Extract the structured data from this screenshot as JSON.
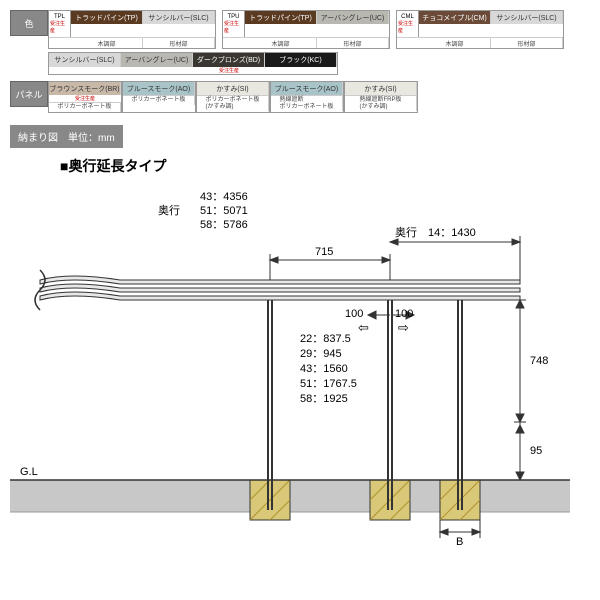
{
  "labels": {
    "color": "色",
    "panel": "パネル",
    "section": "納まり図　単位：mm",
    "title": "■奥行延長タイプ"
  },
  "color_groups": [
    {
      "code": "TPL",
      "note": "受注生産",
      "sw": [
        {
          "t": "トラッドパイン(TP)",
          "c": "#5b3a22",
          "fg": "#fff"
        },
        {
          "t": "サンシルバー(SLC)",
          "c": "#d8d8d8",
          "fg": "#333"
        }
      ],
      "sub": [
        "木調部",
        "形材部"
      ]
    },
    {
      "code": "TPU",
      "note": "受注生産",
      "sw": [
        {
          "t": "トラッドパイン(TP)",
          "c": "#5b3a22",
          "fg": "#fff"
        },
        {
          "t": "アーバングレー(UC)",
          "c": "#b8b8b0",
          "fg": "#333"
        }
      ],
      "sub": [
        "木調部",
        "形材部"
      ]
    },
    {
      "code": "CML",
      "note": "受注生産",
      "sw": [
        {
          "t": "チョコメイプル(CM)",
          "c": "#6b4a38",
          "fg": "#fff"
        },
        {
          "t": "サンシルバー(SLC)",
          "c": "#d8d8d8",
          "fg": "#333"
        }
      ],
      "sub": [
        "木調部",
        "形材部"
      ]
    }
  ],
  "color_row2": [
    {
      "t": "サンシルバー(SLC)",
      "c": "#d8d8d8",
      "fg": "#333"
    },
    {
      "t": "アーバングレー(UC)",
      "c": "#b8b8b0",
      "fg": "#333"
    },
    {
      "t": "ダークブロンズ(BD)",
      "c": "#3a3630",
      "fg": "#fff",
      "note": "受注生産"
    },
    {
      "t": "ブラック(KC)",
      "c": "#1a1a1a",
      "fg": "#fff"
    }
  ],
  "panel_row": [
    {
      "t": "ブラウンスモーク(BR)",
      "c": "#c8b8a8",
      "s": "ポリカーボネート板",
      "note": "受注生産"
    },
    {
      "t": "ブルースモーク(AO)",
      "c": "#a8c4c8",
      "s": "ポリカーボネート板"
    },
    {
      "t": "かすみ(SI)",
      "c": "#e8e8e0",
      "s": "ポリカーボネート板\n(かすみ調)"
    },
    {
      "t": "ブルースモーク(AO)",
      "c": "#a8c4c8",
      "s": "熱線遮断\nポリカーボネート板"
    },
    {
      "t": "かすみ(SI)",
      "c": "#e8e8e0",
      "s": "熱線遮断FRP板\n(かすみ調)"
    }
  ],
  "diagram": {
    "depth_label": "奥行",
    "depth_vals": [
      "43：4356",
      "51：5071",
      "58：5786"
    ],
    "ext_label": "奥行",
    "ext_val": "14：1430",
    "top_span": "715",
    "offset_l": "100",
    "offset_r": "100",
    "heights": [
      "22：837.5",
      "29：945",
      "43：1560",
      "51：1767.5",
      "58：1925"
    ],
    "h748": "748",
    "h95": "95",
    "gl": "G.L",
    "b": "B",
    "colors": {
      "ground": "#c0c0c0",
      "hatch": "#888",
      "footing": "#d8c878",
      "line": "#333"
    }
  }
}
